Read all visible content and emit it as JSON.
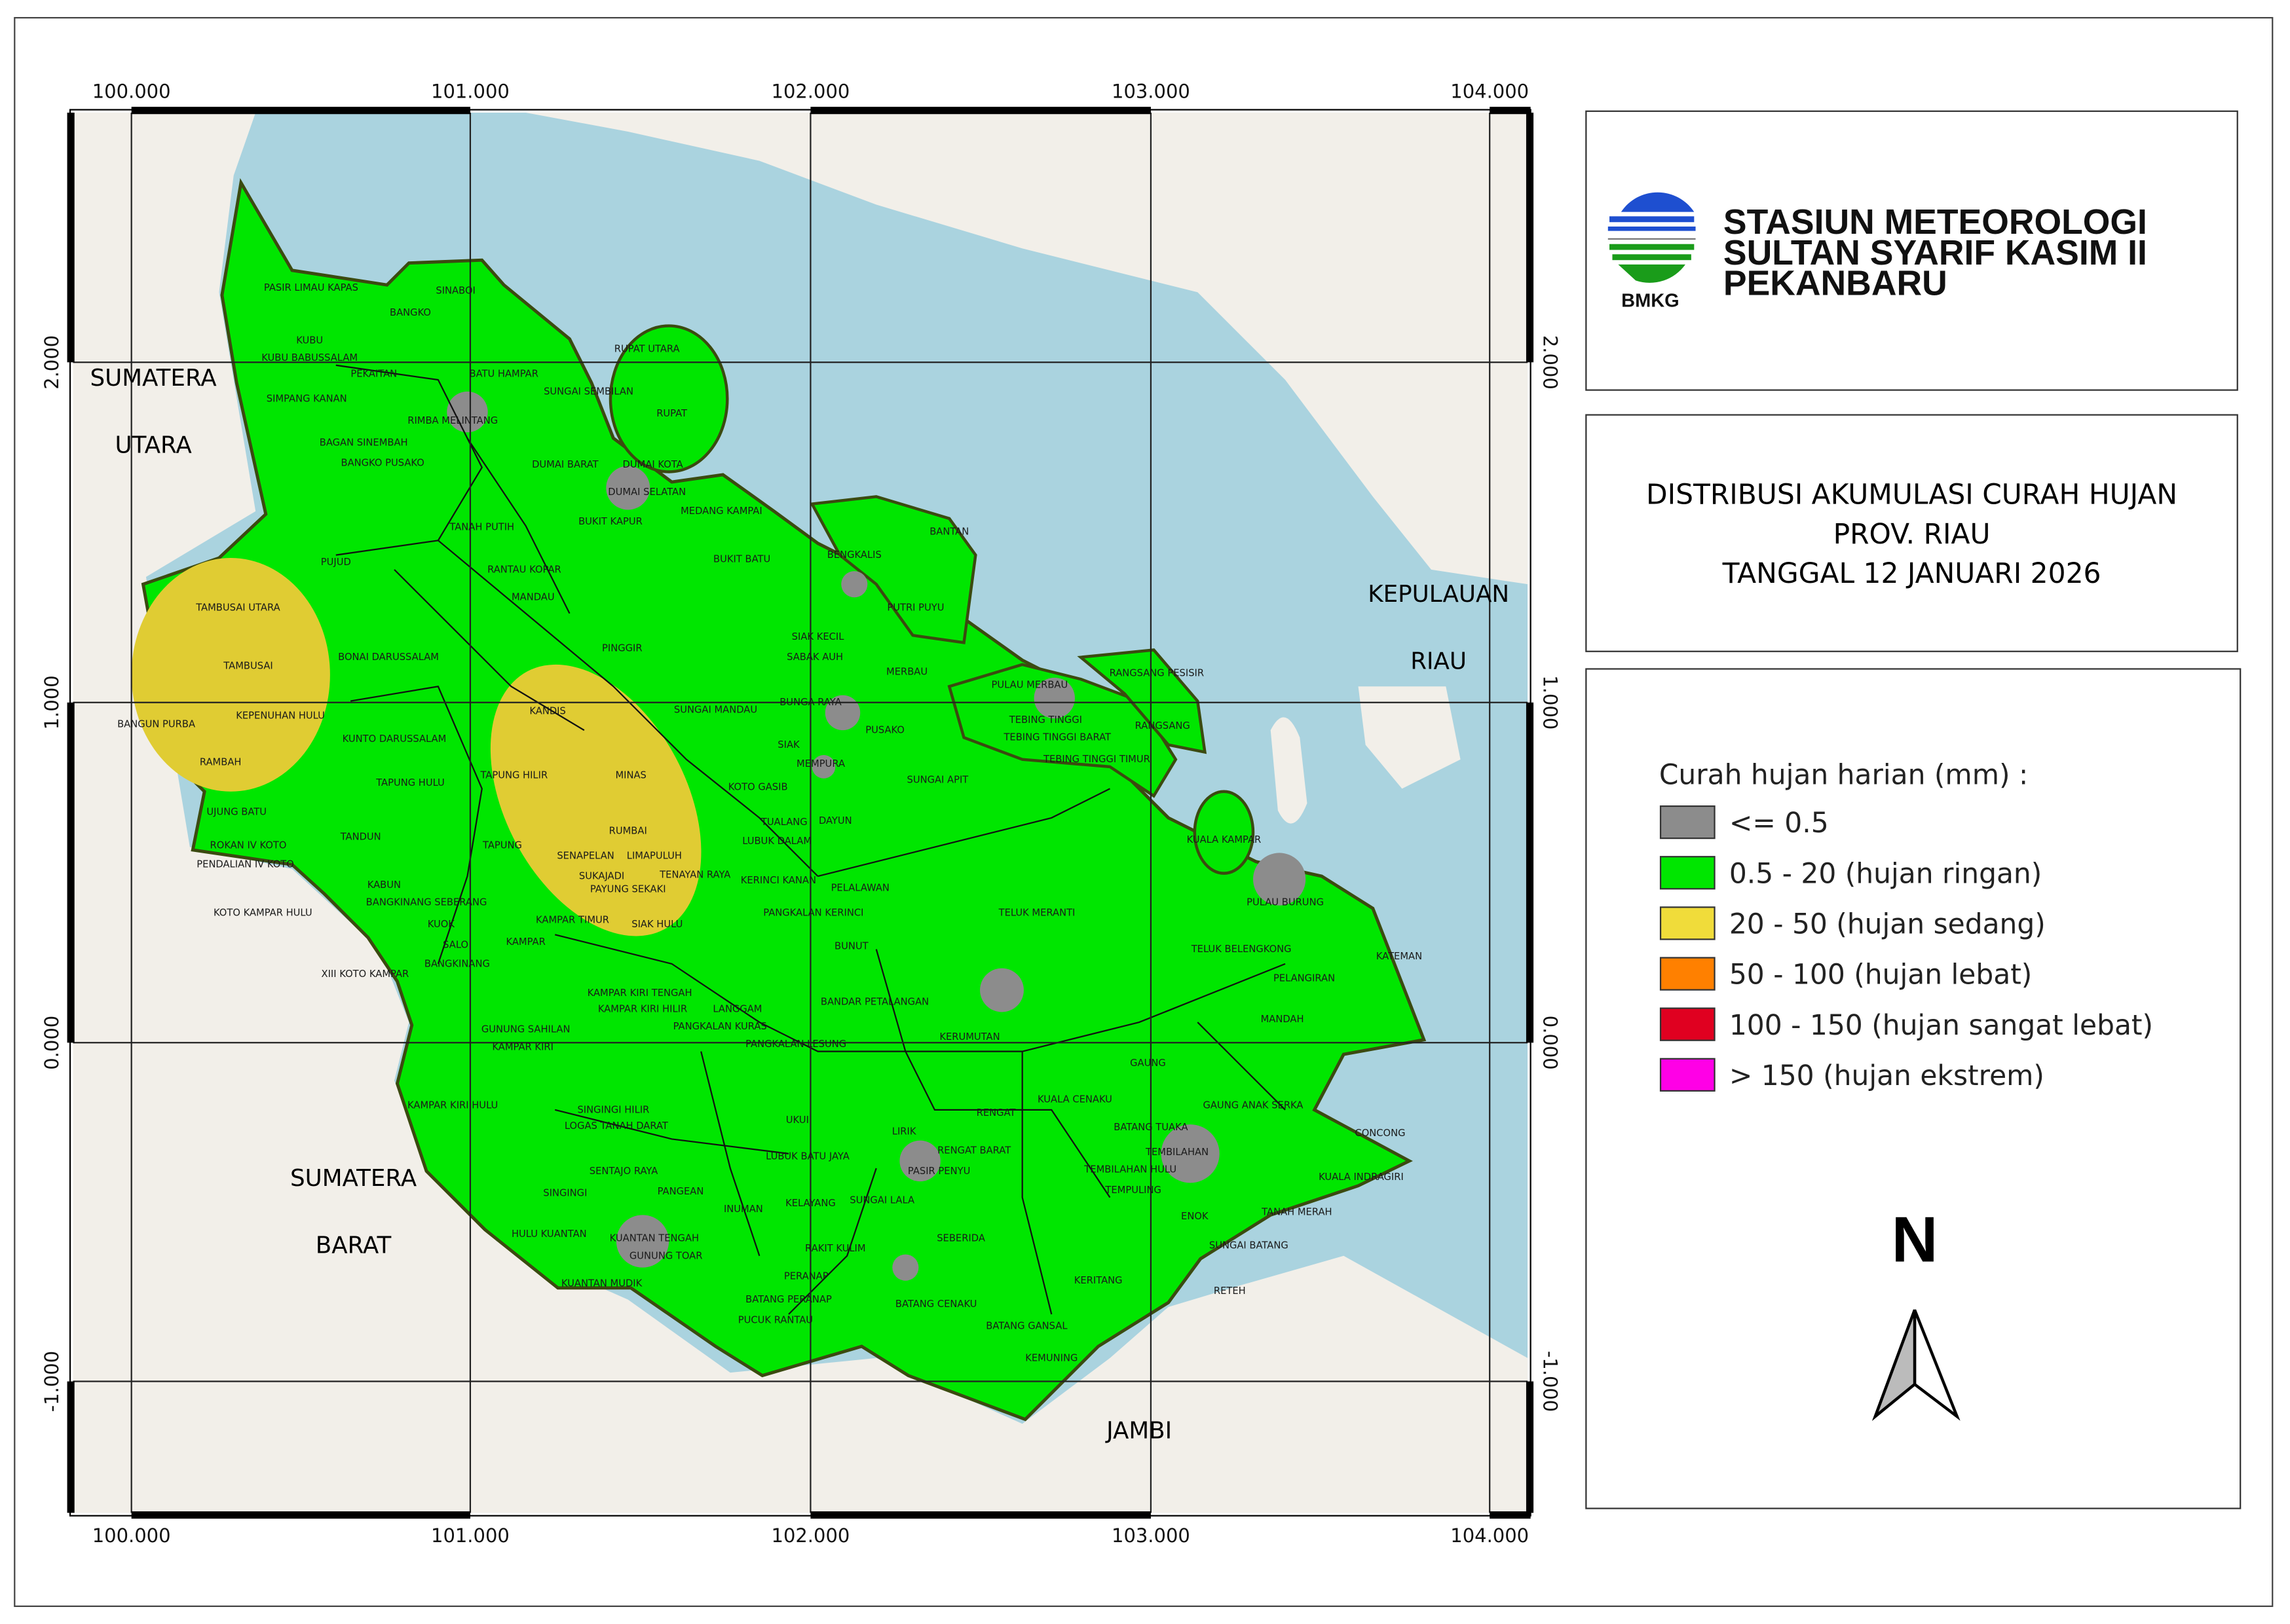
{
  "header": {
    "logo_text": "BMKG",
    "station_lines": [
      "STASIUN METEOROLOGI",
      "SULTAN SYARIF KASIM II",
      "PEKANBARU"
    ]
  },
  "title": {
    "lines": [
      "DISTRIBUSI AKUMULASI CURAH HUJAN",
      "PROV. RIAU",
      "TANGGAL 12 JANUARI 2026"
    ]
  },
  "legend": {
    "title": "Curah hujan harian (mm) :",
    "items": [
      {
        "label": "<= 0.5",
        "color": "#8c8c8c"
      },
      {
        "label": "0.5 - 20 (hujan ringan)",
        "color": "#00e600"
      },
      {
        "label": "20 - 50 (hujan sedang)",
        "color": "#f0dc3a"
      },
      {
        "label": "50 - 100 (hujan lebat)",
        "color": "#ff8000"
      },
      {
        "label": "100 - 150 (hujan sangat lebat)",
        "color": "#e00020"
      },
      {
        "label": "> 150 (hujan ekstrem)",
        "color": "#ff00e6"
      }
    ]
  },
  "north_arrow": {
    "label": "N"
  },
  "axes": {
    "lon_ticks": [
      "100.000",
      "101.000",
      "102.000",
      "103.000",
      "104.000"
    ],
    "lat_ticks": [
      "2.000",
      "1.000",
      "0.000",
      "-1.000"
    ]
  },
  "colors": {
    "sea": "#aad3df",
    "land": "#f2efe9",
    "ringan": "#00e600",
    "sedang": "#e0cc33",
    "kering": "#8c8c8c"
  },
  "map": {
    "regions": [
      "SUMATERA",
      "UTARA",
      "SUMATERA",
      "BARAT",
      "KEPULAUAN",
      "RIAU",
      "JAMBI"
    ],
    "districts": [
      "PASIR LIMAU KAPAS",
      "SINABOI",
      "BANGKO",
      "KUBU",
      "KUBU BABUSSALAM",
      "PEKAITAN",
      "BATU HAMPAR",
      "SIMPANG KANAN",
      "SUNGAI SEMBILAN",
      "RUPAT UTARA",
      "RUPAT",
      "RIMBA MELINTANG",
      "BAGAN SINEMBAH",
      "BANGKO PUSAKO",
      "DUMAI BARAT",
      "DUMAI KOTA",
      "DUMAI SELATAN",
      "MEDANG KAMPAI",
      "BUKIT KAPUR",
      "TANAH PUTIH",
      "PUJUD",
      "BUKIT BATU",
      "RANTAU KOPAR",
      "BANTAN",
      "BENGKALIS",
      "MANDAU",
      "PUTRI PUYU",
      "TAMBUSAI UTARA",
      "PINGGIR",
      "SIAK KECIL",
      "SABAK AUH",
      "BONAI DARUSSALAM",
      "MERBAU",
      "RANGSANG PESISIR",
      "TAMBUSAI",
      "PULAU MERBAU",
      "KANDIS",
      "SUNGAI MANDAU",
      "BUNGA RAYA",
      "KEPENUHAN HULU",
      "BANGUN PURBA",
      "TEBING TINGGI",
      "RANGSANG",
      "PUSAKO",
      "TEBING TINGGI BARAT",
      "KUNTO DARUSSALAM",
      "SIAK",
      "TEBING TINGGI TIMUR",
      "RAMBAH",
      "MINAS",
      "TAPUNG HILIR",
      "MEMPURA",
      "SUNGAI APIT",
      "TAPUNG HULU",
      "KOTO GASIB",
      "UJUNG BATU",
      "DAYUN",
      "RUMBAI",
      "TUALANG",
      "TANDUN",
      "LUBUK DALAM",
      "KUALA KAMPAR",
      "TAPUNG",
      "ROKAN IV KOTO",
      "SENAPELAN",
      "LIMAPULUH",
      "PENDALIAN IV KOTO",
      "SUKAJADI",
      "TENAYAN RAYA",
      "KERINCI KANAN",
      "PAYUNG SEKAKI",
      "KABUN",
      "PELALAWAN",
      "PULAU BURUNG",
      "BANGKINANG SEBERANG",
      "KAMPAR TIMUR",
      "KOTO KAMPAR HULU",
      "TELUK MERANTI",
      "PANGKALAN KERINCI",
      "SIAK HULU",
      "KUOK",
      "TELUK BELENGKONG",
      "SALO",
      "BUNUT",
      "KAMPAR",
      "KATEMAN",
      "BANGKINANG",
      "XIII KOTO KAMPAR",
      "PELANGIRAN",
      "KAMPAR KIRI TENGAH",
      "BANDAR PETALANGAN",
      "KAMPAR KIRI HILIR",
      "LANGGAM",
      "MANDAH",
      "PANGKALAN KURAS",
      "GUNUNG SAHILAN",
      "KERUMUTAN",
      "KAMPAR KIRI",
      "PANGKALAN LESUNG",
      "GAUNG",
      "KAMPAR KIRI HULU",
      "KUALA CENAKU",
      "GAUNG ANAK SERKA",
      "SINGINGI HILIR",
      "LOGAS TANAH DARAT",
      "RENGAT",
      "BATANG TUAKA",
      "CONCONG",
      "UKUI",
      "LIRIK",
      "RENGAT BARAT",
      "TEMBILAHAN",
      "LUBUK BATU JAYA",
      "TEMBILAHAN HULU",
      "KUALA INDRAGIRI",
      "SENTAJO RAYA",
      "PASIR PENYU",
      "TEMPULING",
      "SINGINGI",
      "PANGEAN",
      "INUMAN",
      "SUNGAI LALA",
      "ENOK",
      "TANAH MERAH",
      "KELAYANG",
      "KUANTAN TENGAH",
      "HULU KUANTAN",
      "SEBERIDA",
      "PERANAP",
      "SUNGAI BATANG",
      "RAKIT KULIM",
      "GUNUNG TOAR",
      "KERITANG",
      "KUANTAN MUDIK",
      "RETEH",
      "BATANG PERANAP",
      "BATANG CENAKU",
      "PUCUK RANTAU",
      "BATANG GANSAL",
      "KEMUNING"
    ]
  }
}
